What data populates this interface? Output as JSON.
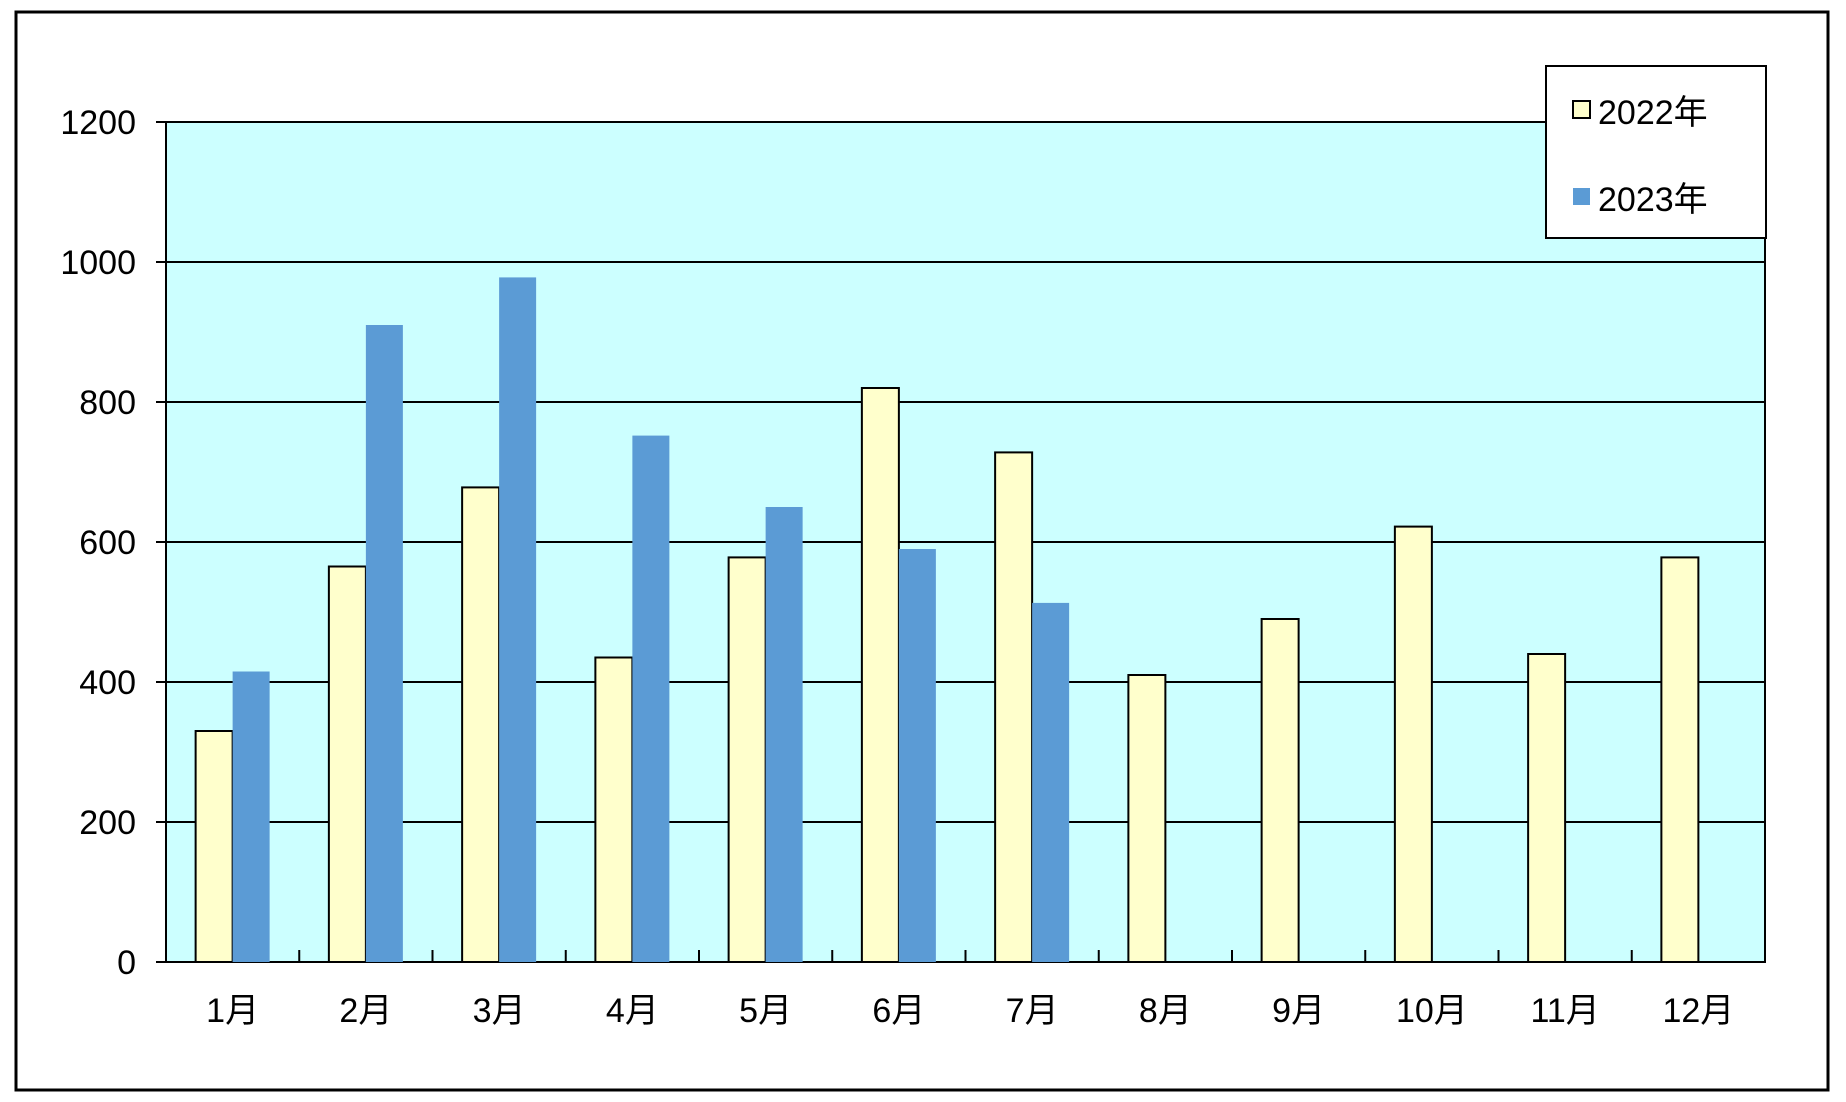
{
  "chart_data": {
    "type": "bar",
    "title": "",
    "xlabel": "",
    "ylabel": "",
    "ylim": [
      0,
      1200
    ],
    "yticks": [
      0,
      200,
      400,
      600,
      800,
      1000,
      1200
    ],
    "grid": true,
    "legend_position": "top-right",
    "categories": [
      "1月",
      "2月",
      "3月",
      "4月",
      "5月",
      "6月",
      "7月",
      "8月",
      "9月",
      "10月",
      "11月",
      "12月"
    ],
    "series": [
      {
        "name": "2022年",
        "color": "#FFFFCC",
        "values": [
          330,
          565,
          678,
          435,
          578,
          820,
          728,
          410,
          490,
          622,
          440,
          578
        ]
      },
      {
        "name": "2023年",
        "color": "#5B9BD5",
        "values": [
          415,
          910,
          978,
          752,
          650,
          590,
          513,
          null,
          null,
          null,
          null,
          null
        ]
      }
    ],
    "colors": {
      "plot_background": "#CCFFFF",
      "frame": "#000000"
    }
  }
}
